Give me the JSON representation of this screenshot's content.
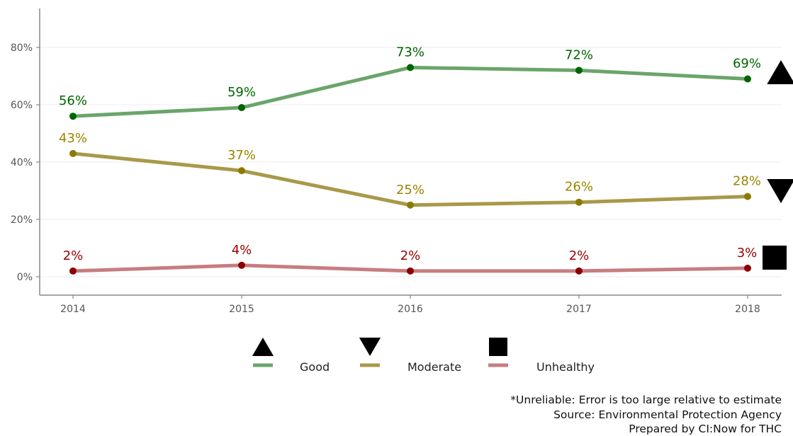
{
  "chart_data": {
    "type": "line",
    "x": [
      "2014",
      "2015",
      "2016",
      "2017",
      "2018"
    ],
    "y_ticks": [
      "0%",
      "20%",
      "40%",
      "60%",
      "80%"
    ],
    "ylim": [
      0,
      90
    ],
    "grid": true,
    "legend_position": "bottom",
    "series": [
      {
        "name": "Good",
        "values": [
          56,
          59,
          73,
          72,
          69
        ],
        "labels": [
          "56%",
          "59%",
          "73%",
          "72%",
          "69%"
        ],
        "line_color": "#6aa56a",
        "point_color": "#006400",
        "label_color": "#006400",
        "trend_marker": "triangle-up"
      },
      {
        "name": "Moderate",
        "values": [
          43,
          37,
          25,
          26,
          28
        ],
        "labels": [
          "43%",
          "37%",
          "25%",
          "26%",
          "28%"
        ],
        "line_color": "#a8994a",
        "point_color": "#8b7a00",
        "label_color": "#9a8400",
        "trend_marker": "triangle-down"
      },
      {
        "name": "Unhealthy",
        "values": [
          2,
          4,
          2,
          2,
          3
        ],
        "labels": [
          "2%",
          "4%",
          "2%",
          "2%",
          "3%"
        ],
        "line_color": "#c77d80",
        "point_color": "#8b0000",
        "label_color": "#990000",
        "trend_marker": "square"
      }
    ]
  },
  "captions": {
    "note": "*Unreliable: Error is too large relative to estimate",
    "source": "Source: Environmental Protection Agency",
    "prepared": "Prepared by CI:Now for THC"
  }
}
